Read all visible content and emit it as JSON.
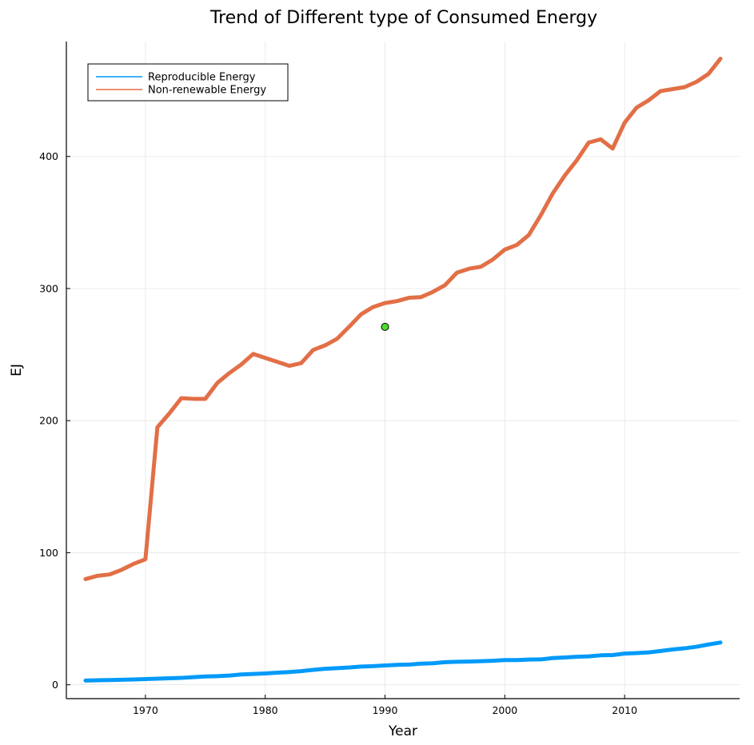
{
  "chart_data": {
    "type": "line",
    "title": "Trend of Different type of Consumed Energy",
    "xlabel": "Year",
    "ylabel": "EJ",
    "xlim": [
      1963.4,
      2019.6
    ],
    "ylim": [
      -10.5,
      487
    ],
    "x_ticks": [
      1970,
      1980,
      1990,
      2000,
      2010
    ],
    "y_ticks": [
      0,
      100,
      200,
      300,
      400
    ],
    "grid": true,
    "legend_position": "top-left",
    "series": [
      {
        "name": "Reproducible Energy",
        "color": "#009af9",
        "x": [
          1965,
          1966,
          1967,
          1968,
          1969,
          1970,
          1971,
          1972,
          1973,
          1974,
          1975,
          1976,
          1977,
          1978,
          1979,
          1980,
          1981,
          1982,
          1983,
          1984,
          1985,
          1986,
          1987,
          1988,
          1989,
          1990,
          1991,
          1992,
          1993,
          1994,
          1995,
          1996,
          1997,
          1998,
          1999,
          2000,
          2001,
          2002,
          2003,
          2004,
          2005,
          2006,
          2007,
          2008,
          2009,
          2010,
          2011,
          2012,
          2013,
          2014,
          2015,
          2016,
          2017,
          2018
        ],
        "values": [
          3.2,
          3.4,
          3.6,
          3.8,
          4.0,
          4.3,
          4.6,
          4.9,
          5.2,
          5.8,
          6.3,
          6.5,
          7.0,
          7.8,
          8.2,
          8.6,
          9.2,
          9.6,
          10.3,
          11.3,
          12.1,
          12.6,
          13.1,
          13.8,
          14.1,
          14.6,
          15.1,
          15.3,
          16.0,
          16.3,
          17.1,
          17.4,
          17.6,
          17.9,
          18.2,
          18.7,
          18.7,
          19.1,
          19.2,
          20.2,
          20.7,
          21.2,
          21.5,
          22.3,
          22.5,
          23.6,
          24.0,
          24.5,
          25.6,
          26.7,
          27.6,
          28.8,
          30.5,
          32.0
        ]
      },
      {
        "name": "Non-renewable Energy",
        "color": "#e26f46",
        "x": [
          1965,
          1966,
          1967,
          1968,
          1969,
          1970,
          1971,
          1972,
          1973,
          1974,
          1975,
          1976,
          1977,
          1978,
          1979,
          1980,
          1981,
          1982,
          1983,
          1984,
          1985,
          1986,
          1987,
          1988,
          1989,
          1990,
          1991,
          1992,
          1993,
          1994,
          1995,
          1996,
          1997,
          1998,
          1999,
          2000,
          2001,
          2002,
          2003,
          2004,
          2005,
          2006,
          2007,
          2008,
          2009,
          2010,
          2011,
          2012,
          2013,
          2014,
          2015,
          2016,
          2017,
          2018
        ],
        "values": [
          80,
          82.5,
          83.5,
          87,
          91.5,
          95,
          195,
          205.5,
          217,
          216.5,
          216.5,
          228.5,
          236,
          242.5,
          250.5,
          247.5,
          244.5,
          241.5,
          243.5,
          253.5,
          257,
          262,
          271,
          280.5,
          286,
          289,
          290.5,
          293,
          293.5,
          297.5,
          302.5,
          312,
          315,
          316.5,
          322,
          329.5,
          333,
          340.5,
          355.5,
          372,
          385.5,
          397,
          410.5,
          413,
          406,
          425.5,
          437,
          442.5,
          449.5,
          451,
          452.5,
          456.5,
          462.5,
          474
        ]
      }
    ],
    "annotations": [
      {
        "type": "point",
        "x": 1990,
        "y": 271,
        "color": "#4cdd2b"
      }
    ]
  }
}
